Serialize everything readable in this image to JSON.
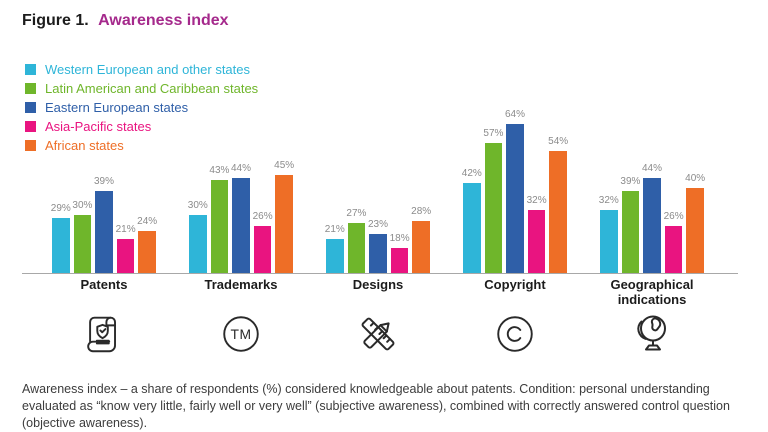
{
  "title": {
    "prefix": "Figure 1.",
    "text": "Awareness index"
  },
  "colors": {
    "title_accent": "#a5298c",
    "value_label": "#8b8b8b",
    "axis_line": "#a8a8a8",
    "icon_stroke": "#2a2a2a"
  },
  "legend": [
    {
      "label": "Western European and other states",
      "color": "#2eb5d8"
    },
    {
      "label": "Latin American and Caribbean states",
      "color": "#6fb62b"
    },
    {
      "label": "Eastern European states",
      "color": "#2f5fa8"
    },
    {
      "label": "Asia-Pacific states",
      "color": "#e91480"
    },
    {
      "label": "African states",
      "color": "#ee6e26"
    }
  ],
  "chart_data": {
    "type": "bar",
    "title": "Awareness index",
    "categories": [
      "Patents",
      "Trademarks",
      "Designs",
      "Copyright",
      "Geographical indications"
    ],
    "series": [
      {
        "name": "Western European and other states",
        "color": "#2eb5d8",
        "values": [
          29,
          30,
          21,
          42,
          32
        ]
      },
      {
        "name": "Latin American and Caribbean states",
        "color": "#6fb62b",
        "values": [
          30,
          43,
          27,
          57,
          39
        ]
      },
      {
        "name": "Eastern European states",
        "color": "#2f5fa8",
        "values": [
          39,
          44,
          23,
          64,
          44
        ]
      },
      {
        "name": "Asia-Pacific states",
        "color": "#e91480",
        "values": [
          21,
          26,
          18,
          32,
          26
        ]
      },
      {
        "name": "African states",
        "color": "#ee6e26",
        "values": [
          24,
          45,
          28,
          54,
          40
        ]
      }
    ],
    "value_suffix": "%",
    "ylim": [
      0,
      70
    ],
    "grid": false,
    "data_labels": true,
    "legend_position": "top-left"
  },
  "category_icons": [
    "patent-scroll-icon",
    "trademark-tm-icon",
    "pencil-ruler-icon",
    "copyright-icon",
    "globe-icon"
  ],
  "icon_glyphs": {
    "trademark": "TM",
    "copyright": "C"
  },
  "caption": "Awareness index – a share of respondents (%) considered knowledgeable about patents. Condition: personal understanding evaluated as “know very little, fairly well or very well” (subjective awareness), combined with correctly answered control question (objective awareness)."
}
